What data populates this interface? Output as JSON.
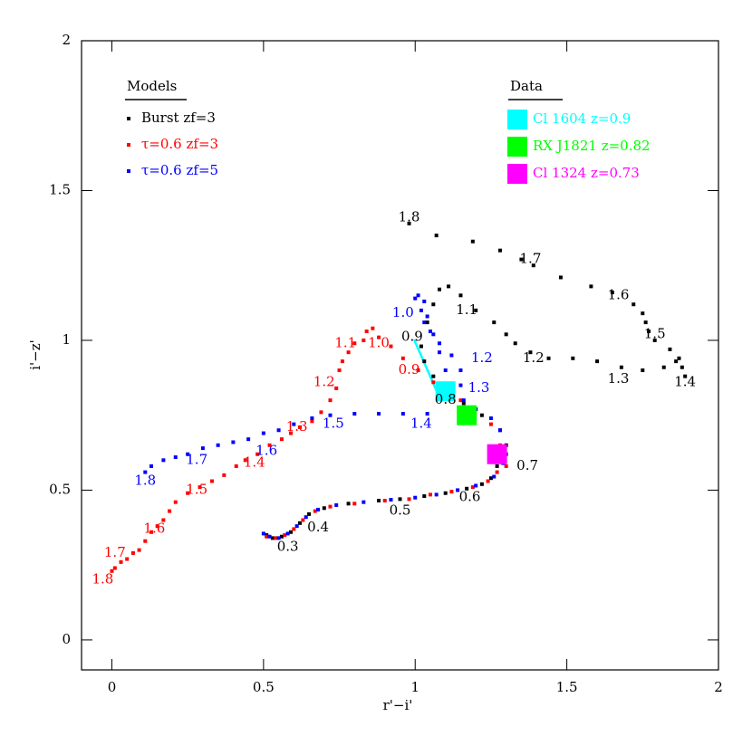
{
  "chart_data": {
    "type": "scatter",
    "xlabel": "r'−i'",
    "ylabel": "i'−z'",
    "xlim": [
      -0.1,
      2.0
    ],
    "ylim": [
      -0.1,
      2.0
    ],
    "xticks": [
      0,
      0.5,
      1,
      1.5,
      2
    ],
    "yticks": [
      0,
      0.5,
      1,
      1.5,
      2
    ],
    "legend_title": "Models",
    "data_legend_title": "Data",
    "series": [
      {
        "name": "Burst zf=3",
        "color": "#000000",
        "x": [
          0.51,
          0.53,
          0.56,
          0.59,
          0.62,
          0.65,
          0.7,
          0.78,
          0.88,
          0.95,
          1.03,
          1.1,
          1.17,
          1.22,
          1.25,
          1.27,
          1.29,
          1.3,
          1.28,
          1.22,
          1.16,
          1.1,
          1.06,
          1.03,
          1.02,
          1.04,
          1.06,
          1.08,
          1.11,
          1.15,
          1.2,
          1.26,
          1.3,
          1.33,
          1.38,
          1.44,
          1.52,
          1.6,
          1.68,
          1.75,
          1.82,
          1.86,
          1.88,
          1.89,
          1.87,
          1.84,
          1.79,
          1.77,
          1.76,
          1.75,
          1.72,
          1.65,
          1.58,
          1.48,
          1.39,
          1.35,
          1.28,
          1.19,
          1.07,
          0.98
        ],
        "y": [
          0.35,
          0.34,
          0.345,
          0.36,
          0.39,
          0.42,
          0.44,
          0.455,
          0.465,
          0.47,
          0.48,
          0.49,
          0.505,
          0.52,
          0.54,
          0.58,
          0.6,
          0.65,
          0.7,
          0.75,
          0.79,
          0.83,
          0.88,
          0.93,
          0.98,
          1.06,
          1.12,
          1.17,
          1.18,
          1.15,
          1.1,
          1.06,
          1.02,
          0.99,
          0.96,
          0.94,
          0.94,
          0.93,
          0.91,
          0.9,
          0.91,
          0.93,
          0.91,
          0.88,
          0.94,
          0.97,
          1.0,
          1.03,
          1.06,
          1.09,
          1.12,
          1.16,
          1.18,
          1.21,
          1.25,
          1.27,
          1.3,
          1.33,
          1.35,
          1.39
        ]
      },
      {
        "name": "τ=0.6 zf=3",
        "color": "#ff0000",
        "x": [
          0.51,
          0.54,
          0.57,
          0.6,
          0.63,
          0.67,
          0.72,
          0.8,
          0.9,
          0.98,
          1.05,
          1.12,
          1.19,
          1.24,
          1.27,
          1.3,
          1.28,
          1.25,
          1.2,
          1.15,
          1.1,
          1.06,
          1.01,
          0.96,
          0.92,
          0.88,
          0.86,
          0.84,
          0.83,
          0.8,
          0.78,
          0.76,
          0.75,
          0.74,
          0.72,
          0.69,
          0.66,
          0.62,
          0.59,
          0.56,
          0.52,
          0.48,
          0.44,
          0.41,
          0.37,
          0.33,
          0.29,
          0.25,
          0.21,
          0.19,
          0.17,
          0.15,
          0.13,
          0.11,
          0.09,
          0.07,
          0.05,
          0.03,
          0.01,
          0.0
        ],
        "y": [
          0.345,
          0.34,
          0.35,
          0.37,
          0.4,
          0.43,
          0.445,
          0.455,
          0.465,
          0.47,
          0.485,
          0.495,
          0.51,
          0.53,
          0.56,
          0.58,
          0.65,
          0.72,
          0.77,
          0.8,
          0.83,
          0.86,
          0.9,
          0.94,
          0.98,
          1.01,
          1.04,
          1.03,
          1.0,
          0.99,
          0.96,
          0.93,
          0.9,
          0.84,
          0.8,
          0.76,
          0.73,
          0.71,
          0.69,
          0.67,
          0.65,
          0.62,
          0.6,
          0.58,
          0.55,
          0.53,
          0.51,
          0.49,
          0.46,
          0.43,
          0.4,
          0.38,
          0.36,
          0.33,
          0.3,
          0.29,
          0.27,
          0.26,
          0.24,
          0.23
        ]
      },
      {
        "name": "τ=0.6 zf=5",
        "color": "#0000ff",
        "x": [
          0.5,
          0.52,
          0.55,
          0.58,
          0.61,
          0.64,
          0.68,
          0.74,
          0.83,
          0.92,
          1.0,
          1.07,
          1.14,
          1.2,
          1.26,
          1.29,
          1.3,
          1.28,
          1.25,
          1.2,
          1.16,
          1.15,
          1.15,
          1.12,
          1.08,
          1.05,
          1.03,
          1.02,
          1.0,
          1.01,
          1.03,
          1.04,
          1.06,
          1.08,
          1.1,
          1.04,
          0.96,
          0.88,
          0.8,
          0.72,
          0.66,
          0.6,
          0.55,
          0.5,
          0.45,
          0.4,
          0.35,
          0.3,
          0.25,
          0.21,
          0.17,
          0.13,
          0.11
        ],
        "y": [
          0.355,
          0.345,
          0.34,
          0.355,
          0.38,
          0.41,
          0.435,
          0.45,
          0.46,
          0.468,
          0.475,
          0.485,
          0.5,
          0.515,
          0.545,
          0.59,
          0.62,
          0.7,
          0.74,
          0.77,
          0.8,
          0.85,
          0.9,
          0.95,
          0.99,
          1.03,
          1.06,
          1.1,
          1.14,
          1.15,
          1.13,
          1.08,
          1.02,
          0.96,
          0.9,
          0.755,
          0.755,
          0.755,
          0.755,
          0.75,
          0.74,
          0.72,
          0.7,
          0.69,
          0.67,
          0.66,
          0.65,
          0.64,
          0.62,
          0.61,
          0.6,
          0.58,
          0.56
        ]
      }
    ],
    "observations": [
      {
        "name": "Cl 1604 z=0.9",
        "color": "#00ffff",
        "x": 1.1,
        "y": 0.83
      },
      {
        "name": "RX J1821 z=0.82",
        "color": "#00ff00",
        "x": 1.17,
        "y": 0.75
      },
      {
        "name": "Cl 1324 z=0.73",
        "color": "#ff00ff",
        "x": 1.27,
        "y": 0.62
      }
    ],
    "annotations": [
      {
        "text": "0.3",
        "x": 0.58,
        "y": 0.31,
        "color": "#000000"
      },
      {
        "text": "0.4",
        "x": 0.68,
        "y": 0.375,
        "color": "#000000"
      },
      {
        "text": "0.5",
        "x": 0.95,
        "y": 0.43,
        "color": "#000000"
      },
      {
        "text": "0.6",
        "x": 1.18,
        "y": 0.475,
        "color": "#000000"
      },
      {
        "text": "0.7",
        "x": 1.37,
        "y": 0.58,
        "color": "#000000"
      },
      {
        "text": "0.8",
        "x": 1.1,
        "y": 0.8,
        "color": "#000000"
      },
      {
        "text": "0.9",
        "x": 0.99,
        "y": 1.01,
        "color": "#000000"
      },
      {
        "text": "1.0",
        "x": 0.96,
        "y": 1.09,
        "color": "#0000ff"
      },
      {
        "text": "1.1",
        "x": 1.17,
        "y": 1.1,
        "color": "#000000"
      },
      {
        "text": "1.2",
        "x": 1.39,
        "y": 0.94,
        "color": "#000000"
      },
      {
        "text": "1.3",
        "x": 1.67,
        "y": 0.87,
        "color": "#000000"
      },
      {
        "text": "1.4",
        "x": 1.89,
        "y": 0.86,
        "color": "#000000"
      },
      {
        "text": "1.5",
        "x": 1.79,
        "y": 1.02,
        "color": "#000000"
      },
      {
        "text": "1.6",
        "x": 1.67,
        "y": 1.15,
        "color": "#000000"
      },
      {
        "text": "1.7",
        "x": 1.38,
        "y": 1.27,
        "color": "#000000"
      },
      {
        "text": "1.8",
        "x": 0.98,
        "y": 1.41,
        "color": "#000000"
      },
      {
        "text": "0.9",
        "x": 0.98,
        "y": 0.9,
        "color": "#ff0000"
      },
      {
        "text": "1.0",
        "x": 0.88,
        "y": 0.99,
        "color": "#ff0000"
      },
      {
        "text": "1.1",
        "x": 0.77,
        "y": 0.99,
        "color": "#ff0000"
      },
      {
        "text": "1.2",
        "x": 0.7,
        "y": 0.86,
        "color": "#ff0000"
      },
      {
        "text": "1.3",
        "x": 0.61,
        "y": 0.71,
        "color": "#ff0000"
      },
      {
        "text": "1.4",
        "x": 0.47,
        "y": 0.59,
        "color": "#ff0000"
      },
      {
        "text": "1.5",
        "x": 0.28,
        "y": 0.5,
        "color": "#ff0000"
      },
      {
        "text": "1.6",
        "x": 0.14,
        "y": 0.37,
        "color": "#ff0000"
      },
      {
        "text": "1.7",
        "x": 0.01,
        "y": 0.29,
        "color": "#ff0000"
      },
      {
        "text": "1.8",
        "x": -0.03,
        "y": 0.2,
        "color": "#ff0000"
      },
      {
        "text": "1.2",
        "x": 1.22,
        "y": 0.94,
        "color": "#0000ff"
      },
      {
        "text": "1.3",
        "x": 1.21,
        "y": 0.84,
        "color": "#0000ff"
      },
      {
        "text": "1.4",
        "x": 1.02,
        "y": 0.72,
        "color": "#0000ff"
      },
      {
        "text": "1.5",
        "x": 0.73,
        "y": 0.72,
        "color": "#0000ff"
      },
      {
        "text": "1.6",
        "x": 0.51,
        "y": 0.63,
        "color": "#0000ff"
      },
      {
        "text": "1.7",
        "x": 0.28,
        "y": 0.6,
        "color": "#0000ff"
      },
      {
        "text": "1.8",
        "x": 0.11,
        "y": 0.53,
        "color": "#0000ff"
      }
    ]
  }
}
